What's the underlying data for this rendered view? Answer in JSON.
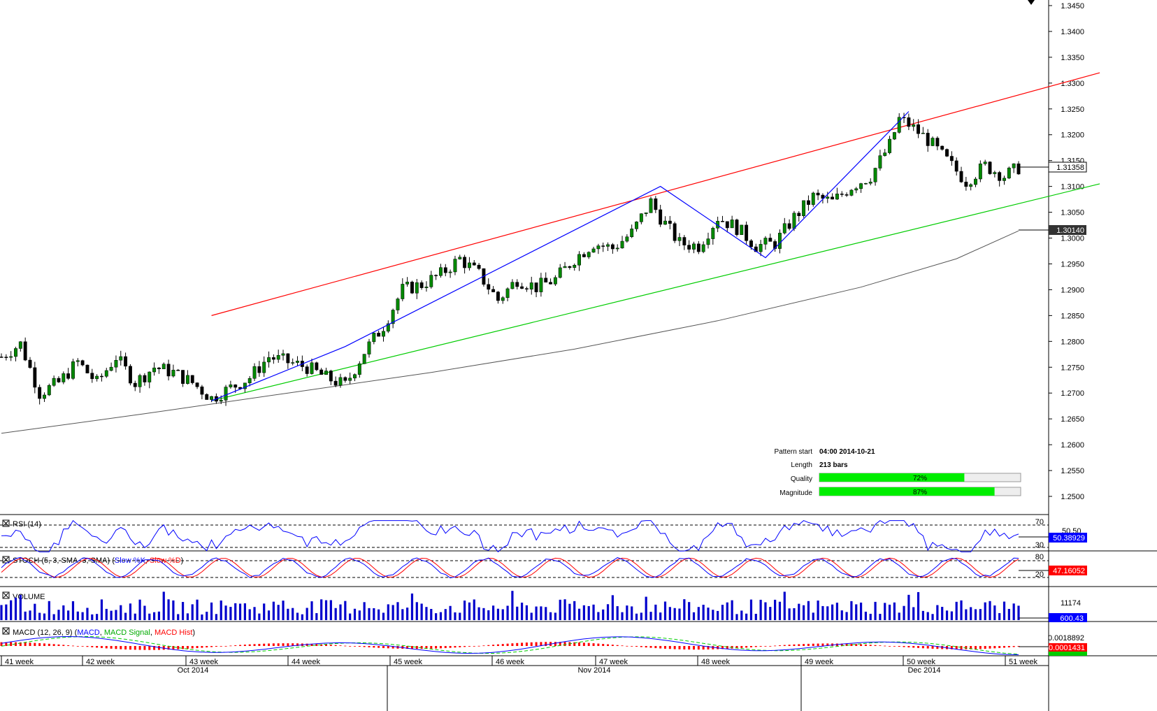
{
  "colors": {
    "channel_upper": "#ff0000",
    "channel_lower": "#00cc00",
    "pattern_line": "#0000ff",
    "moving_average": "#555555",
    "candle_body": "#008800",
    "quality_bar": "#00ee00",
    "volume_bar": "#0000cc",
    "macd_line": "#0000ff",
    "macd_signal": "#00cc00",
    "macd_hist": "#ff0000",
    "price_label_bg": "#ffffff"
  },
  "top_marker_icon": "triangle-down-icon",
  "price_axis": {
    "ticks": [
      "1.3450",
      "1.3400",
      "1.3350",
      "1.3300",
      "1.3250",
      "1.3200",
      "1.3150",
      "1.3100",
      "1.3050",
      "1.3000",
      "1.2950",
      "1.2900",
      "1.2850",
      "1.2800",
      "1.2750",
      "1.2700",
      "1.2650",
      "1.2600",
      "1.2550",
      "1.2500"
    ],
    "current_price": "1.31358",
    "ma_price": "1.30140"
  },
  "pattern_info": {
    "start_label": "Pattern start",
    "start_value": "04:00 2014-10-21",
    "length_label": "Length",
    "length_value": "213 bars",
    "quality_label": "Quality",
    "quality_value": "72%",
    "quality_fraction": 0.72,
    "magnitude_label": "Magnitude",
    "magnitude_value": "87%",
    "magnitude_fraction": 0.87
  },
  "panels": {
    "rsi": {
      "title": "RSI (14)",
      "level_high": "70",
      "level_low": "30",
      "value": "50.38929",
      "partial_label": "50.50"
    },
    "stoch": {
      "title_prefix": "STOCH (5, 3, SMA, 3, SMA) (",
      "k_label": "Slow %K",
      "sep": ", ",
      "d_label": "Slow %D",
      "title_suffix": ")",
      "level_high": "80",
      "level_low": "20",
      "value": "47.16052"
    },
    "volume": {
      "title": "VOLUME",
      "max": "11174",
      "value": "600.43"
    },
    "macd": {
      "title_prefix": "MACD (12, 26, 9) (",
      "macd_label": "MACD",
      "sep": ", ",
      "signal_label": "MACD Signal",
      "hist_label": "MACD Hist",
      "title_suffix": ")",
      "level": "0.0018892",
      "value": "0.0001431",
      "value2": "0.0001431"
    }
  },
  "time_axis": {
    "weeks": [
      "41 week",
      "42 week",
      "43 week",
      "44 week",
      "45 week",
      "46 week",
      "47 week",
      "48 week",
      "49 week",
      "50 week",
      "51 week"
    ],
    "months": [
      "Oct 2014",
      "Nov 2014",
      "Dec 2014"
    ]
  },
  "chart_data": {
    "type": "candlestick",
    "symbol_pair_hint": "",
    "ylim": [
      1.2465,
      1.3475
    ],
    "x_range_bars": [
      0,
      213
    ],
    "channel_upper": {
      "from": [
        1.285,
        44
      ],
      "to": [
        1.332,
        230
      ]
    },
    "channel_lower": {
      "from": [
        1.2685,
        44
      ],
      "to": [
        1.3105,
        230
      ]
    },
    "pattern_points": [
      [
        44,
        1.2685
      ],
      [
        72,
        1.279
      ],
      [
        138,
        1.31
      ],
      [
        160,
        1.2962
      ],
      [
        190,
        1.3245
      ]
    ],
    "moving_average": [
      [
        0,
        1.2622
      ],
      [
        30,
        1.266
      ],
      [
        60,
        1.27
      ],
      [
        90,
        1.274
      ],
      [
        120,
        1.2785
      ],
      [
        150,
        1.284
      ],
      [
        180,
        1.2905
      ],
      [
        200,
        1.296
      ],
      [
        213,
        1.3014
      ]
    ],
    "close_path": [
      [
        0,
        1.277
      ],
      [
        4,
        1.2795
      ],
      [
        8,
        1.27
      ],
      [
        12,
        1.272
      ],
      [
        16,
        1.276
      ],
      [
        20,
        1.272
      ],
      [
        24,
        1.277
      ],
      [
        28,
        1.272
      ],
      [
        32,
        1.275
      ],
      [
        36,
        1.274
      ],
      [
        40,
        1.272
      ],
      [
        44,
        1.269
      ],
      [
        48,
        1.271
      ],
      [
        52,
        1.273
      ],
      [
        56,
        1.277
      ],
      [
        60,
        1.276
      ],
      [
        64,
        1.275
      ],
      [
        68,
        1.273
      ],
      [
        72,
        1.2715
      ],
      [
        76,
        1.278
      ],
      [
        80,
        1.283
      ],
      [
        84,
        1.29
      ],
      [
        88,
        1.291
      ],
      [
        92,
        1.293
      ],
      [
        96,
        1.296
      ],
      [
        100,
        1.293
      ],
      [
        104,
        1.288
      ],
      [
        108,
        1.292
      ],
      [
        112,
        1.2905
      ],
      [
        116,
        1.292
      ],
      [
        120,
        1.296
      ],
      [
        124,
        1.299
      ],
      [
        128,
        1.298
      ],
      [
        132,
        1.301
      ],
      [
        136,
        1.307
      ],
      [
        138,
        1.304
      ],
      [
        142,
        1.299
      ],
      [
        146,
        1.2985
      ],
      [
        150,
        1.304
      ],
      [
        154,
        1.302
      ],
      [
        158,
        1.2985
      ],
      [
        162,
        1.299
      ],
      [
        166,
        1.304
      ],
      [
        170,
        1.308
      ],
      [
        174,
        1.307
      ],
      [
        178,
        1.31
      ],
      [
        182,
        1.312
      ],
      [
        186,
        1.318
      ],
      [
        188,
        1.323
      ],
      [
        190,
        1.322
      ],
      [
        194,
        1.319
      ],
      [
        198,
        1.315
      ],
      [
        202,
        1.311
      ],
      [
        206,
        1.314
      ],
      [
        210,
        1.312
      ],
      [
        213,
        1.3136
      ]
    ]
  }
}
